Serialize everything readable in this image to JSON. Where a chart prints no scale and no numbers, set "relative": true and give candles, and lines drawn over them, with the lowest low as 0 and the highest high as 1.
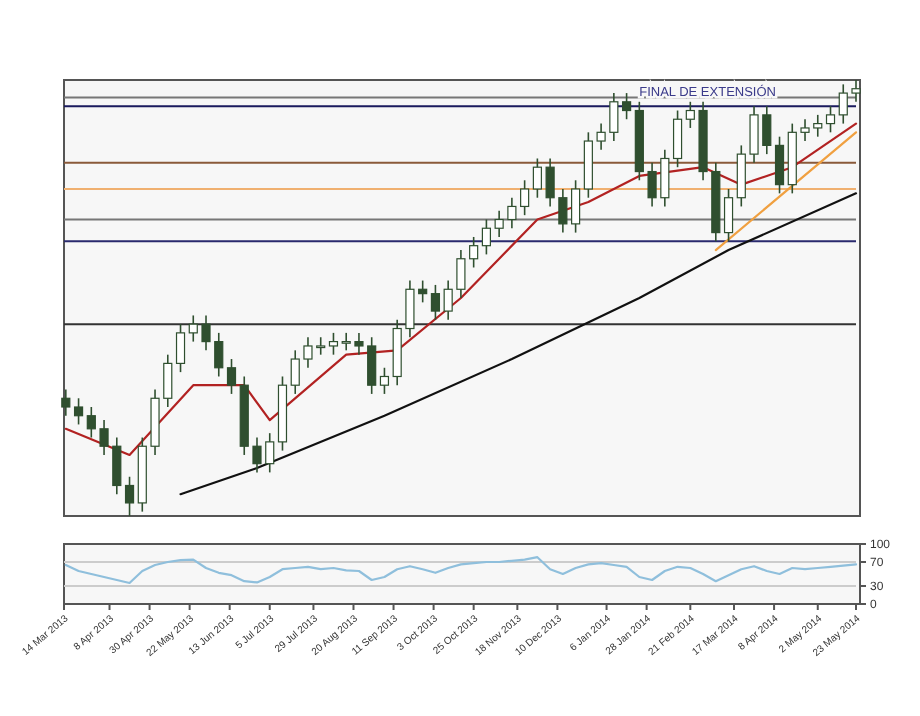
{
  "chart_data": [
    {
      "type": "candlestick",
      "relative": true,
      "xlim": [
        "2013-03-14",
        "2014-05-23"
      ],
      "annotations": [
        "FINAL DE EXTENSIÓN"
      ],
      "x": [
        "2013-03-15",
        "2013-03-22",
        "2013-03-29",
        "2013-04-05",
        "2013-04-12",
        "2013-04-19",
        "2013-04-26",
        "2013-05-03",
        "2013-05-10",
        "2013-05-17",
        "2013-05-24",
        "2013-05-31",
        "2013-06-07",
        "2013-06-14",
        "2013-06-21",
        "2013-06-28",
        "2013-07-05",
        "2013-07-12",
        "2013-07-19",
        "2013-07-26",
        "2013-08-02",
        "2013-08-09",
        "2013-08-16",
        "2013-08-23",
        "2013-08-30",
        "2013-09-06",
        "2013-09-13",
        "2013-09-20",
        "2013-09-27",
        "2013-10-04",
        "2013-10-11",
        "2013-10-18",
        "2013-10-25",
        "2013-11-01",
        "2013-11-08",
        "2013-11-15",
        "2013-11-22",
        "2013-11-29",
        "2013-12-06",
        "2013-12-13",
        "2013-12-20",
        "2013-12-27",
        "2014-01-03",
        "2014-01-10",
        "2014-01-17",
        "2014-01-24",
        "2014-01-31",
        "2014-02-07",
        "2014-02-14",
        "2014-02-21",
        "2014-02-28",
        "2014-03-07",
        "2014-03-14",
        "2014-03-21",
        "2014-03-28",
        "2014-04-04",
        "2014-04-11",
        "2014-04-18",
        "2014-04-25",
        "2014-05-02",
        "2014-05-09",
        "2014-05-16",
        "2014-05-23"
      ],
      "ohlc": [
        [
          0.27,
          0.29,
          0.23,
          0.25
        ],
        [
          0.25,
          0.27,
          0.21,
          0.23
        ],
        [
          0.23,
          0.25,
          0.18,
          0.2
        ],
        [
          0.2,
          0.22,
          0.14,
          0.16
        ],
        [
          0.16,
          0.18,
          0.05,
          0.07
        ],
        [
          0.07,
          0.09,
          0,
          0.03
        ],
        [
          0.03,
          0.18,
          0.01,
          0.16
        ],
        [
          0.16,
          0.29,
          0.14,
          0.27
        ],
        [
          0.27,
          0.37,
          0.25,
          0.35
        ],
        [
          0.35,
          0.44,
          0.33,
          0.42
        ],
        [
          0.42,
          0.46,
          0.4,
          0.44
        ],
        [
          0.44,
          0.46,
          0.38,
          0.4
        ],
        [
          0.4,
          0.42,
          0.32,
          0.34
        ],
        [
          0.34,
          0.36,
          0.28,
          0.3
        ],
        [
          0.3,
          0.32,
          0.14,
          0.16
        ],
        [
          0.16,
          0.18,
          0.1,
          0.12
        ],
        [
          0.12,
          0.19,
          0.1,
          0.17
        ],
        [
          0.17,
          0.32,
          0.15,
          0.3
        ],
        [
          0.3,
          0.38,
          0.28,
          0.36
        ],
        [
          0.36,
          0.41,
          0.34,
          0.39
        ],
        [
          0.39,
          0.41,
          0.37,
          0.39
        ],
        [
          0.39,
          0.42,
          0.37,
          0.4
        ],
        [
          0.4,
          0.42,
          0.38,
          0.4
        ],
        [
          0.4,
          0.42,
          0.37,
          0.39
        ],
        [
          0.39,
          0.41,
          0.28,
          0.3
        ],
        [
          0.3,
          0.34,
          0.28,
          0.32
        ],
        [
          0.32,
          0.45,
          0.3,
          0.43
        ],
        [
          0.43,
          0.54,
          0.41,
          0.52
        ],
        [
          0.52,
          0.54,
          0.49,
          0.51
        ],
        [
          0.51,
          0.53,
          0.45,
          0.47
        ],
        [
          0.47,
          0.54,
          0.45,
          0.52
        ],
        [
          0.52,
          0.61,
          0.5,
          0.59
        ],
        [
          0.59,
          0.64,
          0.57,
          0.62
        ],
        [
          0.62,
          0.68,
          0.6,
          0.66
        ],
        [
          0.66,
          0.7,
          0.64,
          0.68
        ],
        [
          0.68,
          0.73,
          0.66,
          0.71
        ],
        [
          0.71,
          0.77,
          0.69,
          0.75
        ],
        [
          0.75,
          0.82,
          0.73,
          0.8
        ],
        [
          0.8,
          0.82,
          0.71,
          0.73
        ],
        [
          0.73,
          0.75,
          0.65,
          0.67
        ],
        [
          0.67,
          0.77,
          0.65,
          0.75
        ],
        [
          0.75,
          0.88,
          0.73,
          0.86
        ],
        [
          0.86,
          0.9,
          0.84,
          0.88
        ],
        [
          0.88,
          0.97,
          0.86,
          0.95
        ],
        [
          0.95,
          0.97,
          0.91,
          0.93
        ],
        [
          0.93,
          0.95,
          0.77,
          0.79
        ],
        [
          0.79,
          0.81,
          0.71,
          0.73
        ],
        [
          0.73,
          0.84,
          0.71,
          0.82
        ],
        [
          0.82,
          0.93,
          0.8,
          0.91
        ],
        [
          0.91,
          0.95,
          0.89,
          0.93
        ],
        [
          0.93,
          0.95,
          0.77,
          0.79
        ],
        [
          0.79,
          0.81,
          0.63,
          0.65
        ],
        [
          0.65,
          0.75,
          0.63,
          0.73
        ],
        [
          0.73,
          0.85,
          0.71,
          0.83
        ],
        [
          0.83,
          0.94,
          0.81,
          0.92
        ],
        [
          0.92,
          0.94,
          0.83,
          0.85
        ],
        [
          0.85,
          0.87,
          0.74,
          0.76
        ],
        [
          0.76,
          0.9,
          0.74,
          0.88
        ],
        [
          0.88,
          0.91,
          0.86,
          0.89
        ],
        [
          0.89,
          0.92,
          0.87,
          0.9
        ],
        [
          0.9,
          0.94,
          0.88,
          0.92
        ],
        [
          0.92,
          0.99,
          0.9,
          0.97
        ],
        [
          0.97,
          1,
          0.95,
          0.98
        ]
      ],
      "series": [
        {
          "type": "line",
          "color": "#b22222",
          "x": [
            "2013-03-15",
            "2013-04-19",
            "2013-05-24",
            "2013-06-21",
            "2013-07-05",
            "2013-08-16",
            "2013-09-13",
            "2013-10-18",
            "2013-11-29",
            "2013-12-27",
            "2014-01-24",
            "2014-02-28",
            "2014-03-21",
            "2014-04-18",
            "2014-05-23"
          ],
          "values": [
            0.2,
            0.14,
            0.3,
            0.3,
            0.22,
            0.37,
            0.38,
            0.5,
            0.68,
            0.72,
            0.78,
            0.8,
            0.76,
            0.8,
            0.9
          ]
        },
        {
          "type": "line",
          "color": "#111111",
          "x": [
            "2013-05-17",
            "2013-06-28",
            "2013-09-06",
            "2013-11-15",
            "2014-01-24",
            "2014-03-14",
            "2014-05-23"
          ],
          "values": [
            0.05,
            0.11,
            0.23,
            0.36,
            0.5,
            0.61,
            0.74
          ]
        },
        {
          "type": "line",
          "color": "#f0a040",
          "x": [
            "2014-03-07",
            "2014-05-23"
          ],
          "values": [
            0.61,
            0.88
          ]
        }
      ],
      "ref_lines": [
        {
          "axis": "y",
          "value": 0.96,
          "color": "#777777"
        },
        {
          "axis": "y",
          "value": 0.94,
          "color": "#1a1a5e"
        },
        {
          "axis": "y",
          "value": 0.81,
          "color": "#8a5a3a"
        },
        {
          "axis": "y",
          "value": 0.75,
          "color": "#f0b070"
        },
        {
          "axis": "y",
          "value": 0.68,
          "color": "#777777"
        },
        {
          "axis": "y",
          "value": 0.63,
          "color": "#2a2a6e"
        },
        {
          "axis": "y",
          "value": 0.44,
          "color": "#333333"
        }
      ]
    },
    {
      "type": "line",
      "xlim": [
        "2013-03-14",
        "2014-05-23"
      ],
      "xticks": [
        {
          "value": "2013-03-14",
          "label": "14 Mar 2013"
        },
        {
          "value": "2013-04-08",
          "label": "8 Apr 2013"
        },
        {
          "value": "2013-04-30",
          "label": "30 Apr 2013"
        },
        {
          "value": "2013-05-22",
          "label": "22 May 2013"
        },
        {
          "value": "2013-06-13",
          "label": "13 Jun 2013"
        },
        {
          "value": "2013-07-05",
          "label": "5 Jul 2013"
        },
        {
          "value": "2013-07-29",
          "label": "29 Jul 2013"
        },
        {
          "value": "2013-08-20",
          "label": "20 Aug 2013"
        },
        {
          "value": "2013-09-11",
          "label": "11 Sep 2013"
        },
        {
          "value": "2013-10-03",
          "label": "3 Oct 2013"
        },
        {
          "value": "2013-10-25",
          "label": "25 Oct 2013"
        },
        {
          "value": "2013-11-18",
          "label": "18 Nov 2013"
        },
        {
          "value": "2013-12-10",
          "label": "10 Dec 2013"
        },
        {
          "value": "2014-01-06",
          "label": "6 Jan 2014"
        },
        {
          "value": "2014-01-28",
          "label": "28 Jan 2014"
        },
        {
          "value": "2014-02-21",
          "label": "21 Feb 2014"
        },
        {
          "value": "2014-03-17",
          "label": "17 Mar 2014"
        },
        {
          "value": "2014-04-08",
          "label": "8 Apr 2014"
        },
        {
          "value": "2014-05-02",
          "label": "2 May 2014"
        },
        {
          "value": "2014-05-23",
          "label": "23 May 2014"
        }
      ],
      "ylim": [
        0,
        100
      ],
      "yticks": [
        0,
        30,
        70,
        100
      ],
      "ref_lines": [
        {
          "axis": "y",
          "value": 70,
          "color": "#cccccc"
        },
        {
          "axis": "y",
          "value": 30,
          "color": "#cccccc"
        }
      ],
      "series": [
        {
          "color": "#8fbfdc",
          "x": [
            "2013-03-15",
            "2013-03-22",
            "2013-03-29",
            "2013-04-05",
            "2013-04-12",
            "2013-04-19",
            "2013-04-26",
            "2013-05-03",
            "2013-05-10",
            "2013-05-17",
            "2013-05-24",
            "2013-05-31",
            "2013-06-07",
            "2013-06-14",
            "2013-06-21",
            "2013-06-28",
            "2013-07-05",
            "2013-07-12",
            "2013-07-19",
            "2013-07-26",
            "2013-08-02",
            "2013-08-09",
            "2013-08-16",
            "2013-08-23",
            "2013-08-30",
            "2013-09-06",
            "2013-09-13",
            "2013-09-20",
            "2013-09-27",
            "2013-10-04",
            "2013-10-11",
            "2013-10-18",
            "2013-10-25",
            "2013-11-01",
            "2013-11-08",
            "2013-11-15",
            "2013-11-22",
            "2013-11-29",
            "2013-12-06",
            "2013-12-13",
            "2013-12-20",
            "2013-12-27",
            "2014-01-03",
            "2014-01-10",
            "2014-01-17",
            "2014-01-24",
            "2014-01-31",
            "2014-02-07",
            "2014-02-14",
            "2014-02-21",
            "2014-02-28",
            "2014-03-07",
            "2014-03-14",
            "2014-03-21",
            "2014-03-28",
            "2014-04-04",
            "2014-04-11",
            "2014-04-18",
            "2014-04-25",
            "2014-05-02",
            "2014-05-09",
            "2014-05-16",
            "2014-05-23"
          ],
          "values": [
            65,
            55,
            50,
            45,
            40,
            35,
            55,
            65,
            70,
            73,
            74,
            60,
            52,
            48,
            38,
            36,
            45,
            58,
            60,
            62,
            58,
            60,
            56,
            55,
            40,
            45,
            58,
            63,
            58,
            52,
            60,
            66,
            68,
            70,
            70,
            72,
            74,
            78,
            58,
            50,
            60,
            66,
            68,
            65,
            62,
            45,
            40,
            55,
            62,
            60,
            50,
            38,
            48,
            58,
            63,
            55,
            50,
            60,
            58,
            60,
            62,
            64,
            66
          ]
        }
      ]
    }
  ]
}
